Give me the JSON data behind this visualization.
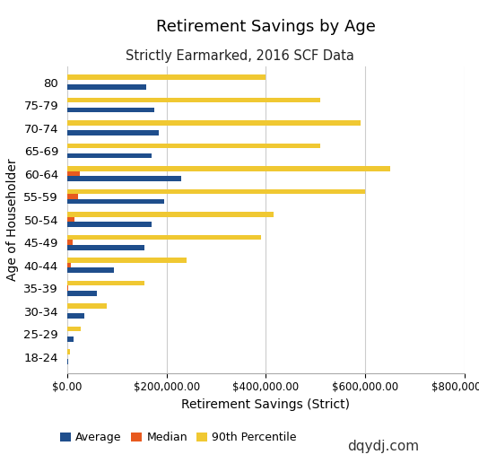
{
  "title": "Retirement Savings by Age",
  "subtitle": "Strictly Earmarked, 2016 SCF Data",
  "xlabel": "Retirement Savings (Strict)",
  "ylabel": "Age of Householder",
  "watermark": "dqydj.com",
  "categories": [
    "18-24",
    "25-29",
    "30-34",
    "35-39",
    "40-44",
    "45-49",
    "50-54",
    "55-59",
    "60-64",
    "65-69",
    "70-74",
    "75-79",
    "80"
  ],
  "average": [
    3000,
    13000,
    35000,
    60000,
    95000,
    155000,
    170000,
    195000,
    230000,
    170000,
    185000,
    175000,
    160000
  ],
  "median": [
    0,
    0,
    0,
    2000,
    8000,
    12000,
    15000,
    22000,
    25000,
    0,
    0,
    0,
    0
  ],
  "p90": [
    5000,
    28000,
    80000,
    155000,
    240000,
    390000,
    415000,
    600000,
    650000,
    510000,
    590000,
    510000,
    400000
  ],
  "color_average": "#1f4e8c",
  "color_median": "#e85a1f",
  "color_p90": "#f0c832",
  "xlim": [
    0,
    800000
  ],
  "background_color": "#ffffff",
  "grid_color": "#cccccc"
}
